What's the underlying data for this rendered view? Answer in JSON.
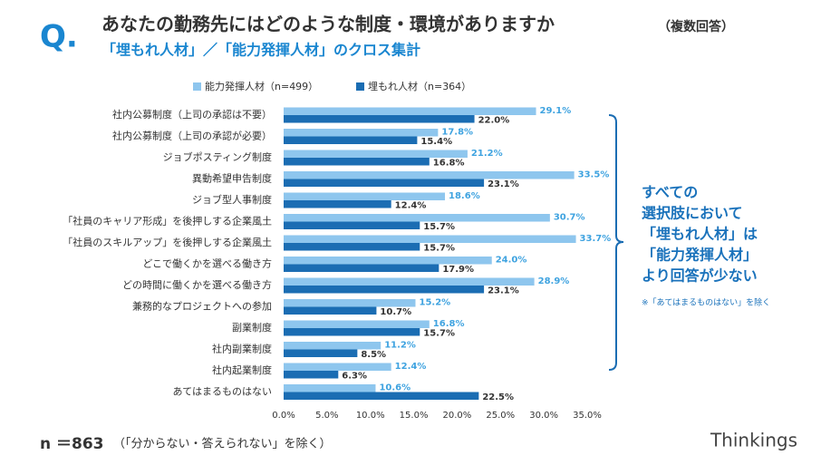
{
  "chart_data": {
    "type": "bar",
    "orientation": "horizontal",
    "q_mark": "Q.",
    "title": "あなたの勤務先にはどのような制度・環境がありますか",
    "title_note": "（複数回答）",
    "subtitle": "「埋もれ人材」／「能力発揮人材」のクロス集計",
    "categories": [
      "社内公募制度（上司の承認は不要）",
      "社内公募制度（上司の承認が必要）",
      "ジョブポスティング制度",
      "異動希望申告制度",
      "ジョブ型人事制度",
      "「社員のキャリア形成」を後押しする企業風土",
      "「社員のスキルアップ」を後押しする企業風土",
      "どこで働くかを選べる働き方",
      "どの時間に働くかを選べる働き方",
      "兼務的なプロジェクトへの参加",
      "副業制度",
      "社内副業制度",
      "社内起業制度",
      "あてはまるものはない"
    ],
    "series": [
      {
        "name": "能力発揮人材（n=499）",
        "color": "#8ec6ee",
        "values": [
          29.1,
          17.8,
          21.2,
          33.5,
          18.6,
          30.7,
          33.7,
          24.0,
          28.9,
          15.2,
          16.8,
          11.2,
          12.4,
          10.6
        ],
        "value_labels": [
          "29.1%",
          "17.8%",
          "21.2%",
          "33.5%",
          "18.6%",
          "30.7%",
          "33.7%",
          "24.0%",
          "28.9%",
          "15.2%",
          "16.8%",
          "11.2%",
          "12.4%",
          "10.6%"
        ]
      },
      {
        "name": "埋もれ人材（n=364）",
        "color": "#1b6db3",
        "values": [
          22.0,
          15.4,
          16.8,
          23.1,
          12.4,
          15.7,
          15.7,
          17.9,
          23.1,
          10.7,
          15.7,
          8.5,
          6.3,
          22.5
        ],
        "value_labels": [
          "22.0%",
          "15.4%",
          "16.8%",
          "23.1%",
          "12.4%",
          "15.7%",
          "15.7%",
          "17.9%",
          "23.1%",
          "10.7%",
          "15.7%",
          "8.5%",
          "6.3%",
          "22.5%"
        ]
      }
    ],
    "xlim": [
      0,
      35
    ],
    "xticks": [
      {
        "value": 0,
        "label": "0.0%"
      },
      {
        "value": 5,
        "label": "5.0%"
      },
      {
        "value": 10,
        "label": "10.0%"
      },
      {
        "value": 15,
        "label": "15.0%"
      },
      {
        "value": 20,
        "label": "20.0%"
      },
      {
        "value": 25,
        "label": "25.0%"
      },
      {
        "value": 30,
        "label": "30.0%"
      },
      {
        "value": 35,
        "label": "35.0%"
      }
    ],
    "grid": false,
    "legend": "top",
    "annotations": [
      "すべての",
      "選択肢において",
      "「埋もれ人材」は",
      "「能力発揮人材」",
      "より回答が少ない"
    ],
    "annotation_note": "※「あてはまるものはない」を除く",
    "footer_n": "n ＝863",
    "footer_note": "（「分からない・答えられない」を除く）",
    "brand": "Thinkings"
  }
}
